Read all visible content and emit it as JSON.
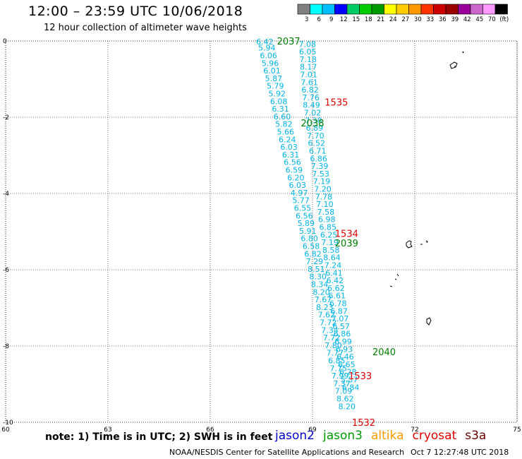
{
  "header": {
    "title": "12:00 – 23:59 UTC 10/06/2018",
    "subtitle": "12 hour collection of altimeter wave heights"
  },
  "colorbar": {
    "labels": [
      "3",
      "6",
      "9",
      "12",
      "15",
      "18",
      "21",
      "24",
      "27",
      "30",
      "33",
      "36",
      "39",
      "42",
      "45",
      "70",
      "(ft)"
    ],
    "colors": [
      "#808080",
      "#00ffff",
      "#00bfff",
      "#0000ff",
      "#00cc66",
      "#00cc00",
      "#009900",
      "#ffff00",
      "#ffcc00",
      "#ff9900",
      "#ff3300",
      "#cc0000",
      "#990000",
      "#990099",
      "#cc66cc",
      "#ff99ff",
      "#000000"
    ]
  },
  "axes": {
    "x_ticks": [
      "60",
      "63",
      "66",
      "69",
      "72",
      "75"
    ],
    "y_ticks": [
      "0",
      "-2",
      "-4",
      "-6",
      "-8",
      "-10"
    ]
  },
  "tracks": [
    {
      "mission": "cryosat",
      "color": "#00b4e6",
      "points": [
        {
          "lon": 67.6,
          "lat": -0.02,
          "swh": "6.42"
        },
        {
          "lon": 67.66,
          "lat": -0.18,
          "swh": "5.94"
        },
        {
          "lon": 67.71,
          "lat": -0.38,
          "swh": "6.06"
        },
        {
          "lon": 67.76,
          "lat": -0.58,
          "swh": "5.96"
        },
        {
          "lon": 67.81,
          "lat": -0.78,
          "swh": "6.01"
        },
        {
          "lon": 67.86,
          "lat": -0.98,
          "swh": "5.87"
        },
        {
          "lon": 67.91,
          "lat": -1.18,
          "swh": "5.79"
        },
        {
          "lon": 67.96,
          "lat": -1.38,
          "swh": "5.92"
        },
        {
          "lon": 68.01,
          "lat": -1.58,
          "swh": "6.08"
        },
        {
          "lon": 68.06,
          "lat": -1.78,
          "swh": "6.31"
        },
        {
          "lon": 68.11,
          "lat": -1.98,
          "swh": "6.60"
        },
        {
          "lon": 68.16,
          "lat": -2.18,
          "swh": "5.82"
        },
        {
          "lon": 68.21,
          "lat": -2.38,
          "swh": "5.66"
        },
        {
          "lon": 68.26,
          "lat": -2.58,
          "swh": "6.24"
        },
        {
          "lon": 68.31,
          "lat": -2.78,
          "swh": "6.03"
        },
        {
          "lon": 68.36,
          "lat": -2.98,
          "swh": "6.31"
        },
        {
          "lon": 68.41,
          "lat": -3.18,
          "swh": "6.56"
        },
        {
          "lon": 68.46,
          "lat": -3.38,
          "swh": "6.59"
        },
        {
          "lon": 68.51,
          "lat": -3.58,
          "swh": "6.20"
        },
        {
          "lon": 68.56,
          "lat": -3.78,
          "swh": "6.03"
        },
        {
          "lon": 68.61,
          "lat": -3.98,
          "swh": "4.97"
        },
        {
          "lon": 68.66,
          "lat": -4.18,
          "swh": "5.77"
        },
        {
          "lon": 68.71,
          "lat": -4.38,
          "swh": "6.55"
        },
        {
          "lon": 68.76,
          "lat": -4.58,
          "swh": "6.56"
        },
        {
          "lon": 68.81,
          "lat": -4.78,
          "swh": "5.89"
        },
        {
          "lon": 68.86,
          "lat": -4.98,
          "swh": "5.91"
        },
        {
          "lon": 68.91,
          "lat": -5.18,
          "swh": "6.80"
        },
        {
          "lon": 68.96,
          "lat": -5.38,
          "swh": "6.58"
        },
        {
          "lon": 69.01,
          "lat": -5.58,
          "swh": "6.82"
        },
        {
          "lon": 69.06,
          "lat": -5.78,
          "swh": "7.29"
        },
        {
          "lon": 69.11,
          "lat": -5.98,
          "swh": "8.51"
        },
        {
          "lon": 69.16,
          "lat": -6.18,
          "swh": "8.30"
        },
        {
          "lon": 69.21,
          "lat": -6.38,
          "swh": "8.34"
        },
        {
          "lon": 69.26,
          "lat": -6.58,
          "swh": "8.20"
        },
        {
          "lon": 69.31,
          "lat": -6.78,
          "swh": "7.67"
        },
        {
          "lon": 69.36,
          "lat": -6.98,
          "swh": "8.23"
        },
        {
          "lon": 69.41,
          "lat": -7.18,
          "swh": "7.62"
        },
        {
          "lon": 69.46,
          "lat": -7.38,
          "swh": "7.72"
        },
        {
          "lon": 69.51,
          "lat": -7.58,
          "swh": "7.34"
        },
        {
          "lon": 69.56,
          "lat": -7.78,
          "swh": "7.72"
        },
        {
          "lon": 69.61,
          "lat": -7.98,
          "swh": "7.80"
        },
        {
          "lon": 69.66,
          "lat": -8.18,
          "swh": "7.77"
        },
        {
          "lon": 69.71,
          "lat": -8.38,
          "swh": "6.85"
        },
        {
          "lon": 69.76,
          "lat": -8.58,
          "swh": "7.75"
        },
        {
          "lon": 69.81,
          "lat": -8.78,
          "swh": "7.99"
        },
        {
          "lon": 69.86,
          "lat": -8.98,
          "swh": "7.37"
        },
        {
          "lon": 69.91,
          "lat": -9.18,
          "swh": "7.09"
        },
        {
          "lon": 69.96,
          "lat": -9.38,
          "swh": "8.62"
        },
        {
          "lon": 70.01,
          "lat": -9.58,
          "swh": "8.20"
        }
      ]
    },
    {
      "mission": "cryosat",
      "color": "#00b4e6",
      "points": [
        {
          "lon": 68.85,
          "lat": -0.08,
          "swh": "7.08"
        },
        {
          "lon": 68.86,
          "lat": -0.28,
          "swh": "6.05"
        },
        {
          "lon": 68.87,
          "lat": -0.48,
          "swh": "7.18"
        },
        {
          "lon": 68.88,
          "lat": -0.68,
          "swh": "8.17"
        },
        {
          "lon": 68.89,
          "lat": -0.88,
          "swh": "7.01"
        },
        {
          "lon": 68.91,
          "lat": -1.08,
          "swh": "7.61"
        },
        {
          "lon": 68.93,
          "lat": -1.28,
          "swh": "6.82"
        },
        {
          "lon": 68.95,
          "lat": -1.48,
          "swh": "7.76"
        },
        {
          "lon": 68.97,
          "lat": -1.68,
          "swh": "8.49"
        },
        {
          "lon": 69.0,
          "lat": -1.88,
          "swh": "7.02"
        },
        {
          "lon": 69.03,
          "lat": -2.08,
          "swh": "7.38"
        },
        {
          "lon": 69.06,
          "lat": -2.28,
          "swh": "6.89"
        },
        {
          "lon": 69.09,
          "lat": -2.48,
          "swh": "7.70"
        },
        {
          "lon": 69.12,
          "lat": -2.68,
          "swh": "6.52"
        },
        {
          "lon": 69.15,
          "lat": -2.88,
          "swh": "6.71"
        },
        {
          "lon": 69.18,
          "lat": -3.08,
          "swh": "6.86"
        },
        {
          "lon": 69.21,
          "lat": -3.28,
          "swh": "7.39"
        },
        {
          "lon": 69.24,
          "lat": -3.48,
          "swh": "7.53"
        },
        {
          "lon": 69.27,
          "lat": -3.68,
          "swh": "7.19"
        },
        {
          "lon": 69.3,
          "lat": -3.88,
          "swh": "7.20"
        },
        {
          "lon": 69.33,
          "lat": -4.08,
          "swh": "7.78"
        },
        {
          "lon": 69.36,
          "lat": -4.28,
          "swh": "7.10"
        },
        {
          "lon": 69.39,
          "lat": -4.48,
          "swh": "7.58"
        },
        {
          "lon": 69.42,
          "lat": -4.68,
          "swh": "6.98"
        },
        {
          "lon": 69.45,
          "lat": -4.88,
          "swh": "6.85"
        },
        {
          "lon": 69.48,
          "lat": -5.08,
          "swh": "6.25"
        },
        {
          "lon": 69.51,
          "lat": -5.28,
          "swh": "7.19"
        },
        {
          "lon": 69.54,
          "lat": -5.48,
          "swh": "8.58"
        },
        {
          "lon": 69.57,
          "lat": -5.68,
          "swh": "8.64"
        },
        {
          "lon": 69.6,
          "lat": -5.88,
          "swh": "7.24"
        },
        {
          "lon": 69.63,
          "lat": -6.08,
          "swh": "6.41"
        },
        {
          "lon": 69.66,
          "lat": -6.28,
          "swh": "6.42"
        },
        {
          "lon": 69.69,
          "lat": -6.48,
          "swh": "6.62"
        },
        {
          "lon": 69.72,
          "lat": -6.68,
          "swh": "6.61"
        },
        {
          "lon": 69.75,
          "lat": -6.88,
          "swh": "6.78"
        },
        {
          "lon": 69.78,
          "lat": -7.08,
          "swh": "6.87"
        },
        {
          "lon": 69.81,
          "lat": -7.28,
          "swh": "7.07"
        },
        {
          "lon": 69.84,
          "lat": -7.48,
          "swh": "6.57"
        },
        {
          "lon": 69.87,
          "lat": -7.68,
          "swh": "6.86"
        },
        {
          "lon": 69.9,
          "lat": -7.88,
          "swh": "6.99"
        },
        {
          "lon": 69.93,
          "lat": -8.08,
          "swh": "6.93"
        },
        {
          "lon": 69.96,
          "lat": -8.28,
          "swh": "6.46"
        },
        {
          "lon": 70.0,
          "lat": -8.48,
          "swh": "6.65"
        },
        {
          "lon": 70.04,
          "lat": -8.68,
          "swh": "6.28"
        },
        {
          "lon": 70.08,
          "lat": -8.88,
          "swh": "5.57"
        },
        {
          "lon": 70.12,
          "lat": -9.08,
          "swh": "6.84"
        }
      ]
    }
  ],
  "time_labels": [
    {
      "text": "2037",
      "color": "#008000",
      "lon": 68.3,
      "lat": 0.0
    },
    {
      "text": "1535",
      "color": "#e00000",
      "lon": 69.7,
      "lat": -1.6
    },
    {
      "text": "2038",
      "color": "#008000",
      "lon": 69.0,
      "lat": -2.15
    },
    {
      "text": "1534",
      "color": "#e00000",
      "lon": 70.0,
      "lat": -5.05
    },
    {
      "text": "2039",
      "color": "#008000",
      "lon": 70.0,
      "lat": -5.3
    },
    {
      "text": "2040",
      "color": "#008000",
      "lon": 71.1,
      "lat": -8.15
    },
    {
      "text": "1533",
      "color": "#e00000",
      "lon": 70.4,
      "lat": -8.78
    },
    {
      "text": "1532",
      "color": "#e00000",
      "lon": 70.5,
      "lat": -10.0
    }
  ],
  "footer": {
    "note": "note: 1) Time is in UTC; 2) SWH is in feet",
    "missions": [
      {
        "name": "jason2",
        "color": "#0000cc"
      },
      {
        "name": "jason3",
        "color": "#009900"
      },
      {
        "name": "altika",
        "color": "#ff9900"
      },
      {
        "name": "cryosat",
        "color": "#e00000"
      },
      {
        "name": "s3a",
        "color": "#660000"
      }
    ],
    "credit": "NOAA/NESDIS Center for Satellite Applications and Research",
    "timestamp": "Oct  7 12:27:48 UTC 2018"
  }
}
